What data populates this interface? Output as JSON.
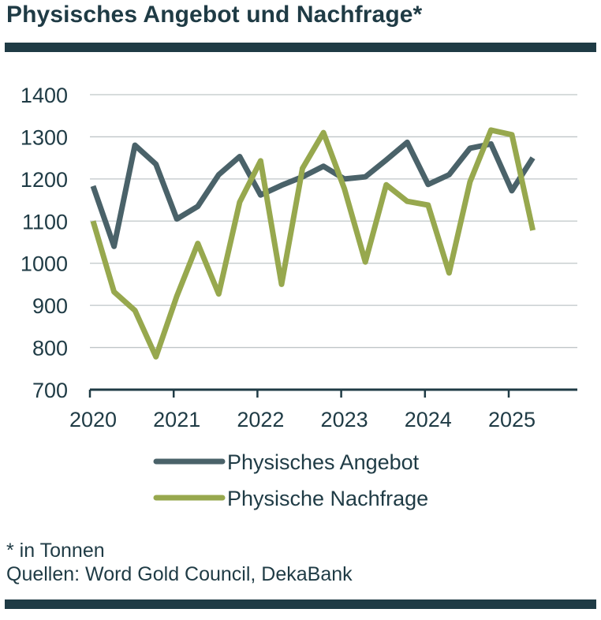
{
  "title": "Physisches Angebot und Nachfrage*",
  "footnote": "* in Tonnen",
  "source": "Quellen: Word Gold Council, DekaBank",
  "chart_data": {
    "type": "line",
    "ylim": [
      700,
      1400
    ],
    "yticks": [
      700,
      800,
      900,
      1000,
      1100,
      1200,
      1300,
      1400
    ],
    "xticks": [
      "2020",
      "2021",
      "2022",
      "2023",
      "2024",
      "2025"
    ],
    "x": [
      "2020 Q1",
      "2020 Q2",
      "2020 Q3",
      "2020 Q4",
      "2021 Q1",
      "2021 Q2",
      "2021 Q3",
      "2021 Q4",
      "2022 Q1",
      "2022 Q2",
      "2022 Q3",
      "2022 Q4",
      "2023 Q1",
      "2023 Q2",
      "2023 Q3",
      "2023 Q4",
      "2024 Q1",
      "2024 Q2",
      "2024 Q3",
      "2024 Q4",
      "2025 Q1",
      "2025 Q2"
    ],
    "grid": true,
    "legend_position": "bottom",
    "series": [
      {
        "name": "Physisches Angebot",
        "color": "#4a6269",
        "values": [
          1183,
          1040,
          1280,
          1235,
          1105,
          1135,
          1210,
          1253,
          1162,
          1185,
          1205,
          1230,
          1200,
          1205,
          1245,
          1287,
          1187,
          1210,
          1273,
          1283,
          1172,
          1250
        ]
      },
      {
        "name": "Physische Nachfrage",
        "color": "#97a84e",
        "values": [
          1100,
          932,
          888,
          778,
          922,
          1047,
          927,
          1145,
          1243,
          950,
          1225,
          1310,
          1177,
          1003,
          1186,
          1147,
          1138,
          977,
          1193,
          1316,
          1305,
          1078
        ]
      }
    ]
  }
}
